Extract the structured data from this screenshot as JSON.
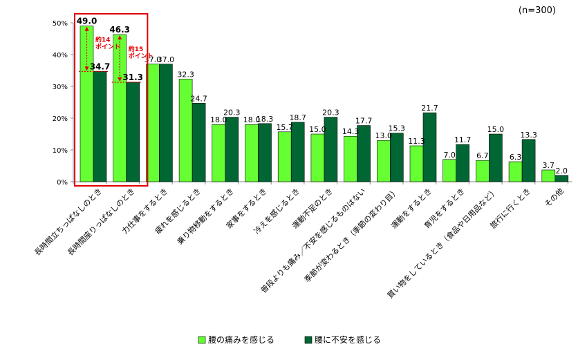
{
  "chart_data": {
    "type": "bar",
    "sample_note": "(n=300)",
    "categories": [
      "長時間立ちっぱなしのとき",
      "長時間座りっぱなしのとき",
      "力仕事をするとき",
      "疲れを感じるとき",
      "乗り物移動をするとき",
      "家事をするとき",
      "冷えを感じるとき",
      "運動不足のとき",
      "普段よりも痛み／不安を感じるものはない",
      "季節が変わるとき（季節の変わり目）",
      "運動をするとき",
      "育児をするとき",
      "買い物をしているとき（食品や日用品など）",
      "旅行に行くとき",
      "その他"
    ],
    "series": [
      {
        "name": "腰の痛みを感じる",
        "color": "#66ff33",
        "values": [
          49.0,
          46.3,
          37.0,
          32.3,
          18.0,
          18.0,
          15.7,
          15.0,
          14.3,
          13.0,
          11.3,
          7.0,
          6.7,
          6.3,
          3.7
        ]
      },
      {
        "name": "腰に不安を感じる",
        "color": "#006633",
        "values": [
          34.7,
          31.3,
          37.0,
          24.7,
          20.3,
          18.3,
          18.7,
          20.3,
          17.7,
          15.3,
          21.7,
          11.7,
          15.0,
          13.3,
          2.0
        ]
      }
    ],
    "yticks": [
      "0%",
      "10%",
      "20%",
      "30%",
      "40%",
      "50%"
    ],
    "ylim": [
      0,
      50
    ],
    "grid": false,
    "legend_position": "bottom",
    "highlight_categories": [
      0,
      1
    ],
    "annotations": [
      {
        "category": 0,
        "label_line1": "約14",
        "label_line2": "ポイント"
      },
      {
        "category": 1,
        "label_line1": "約15",
        "label_line2": "ポイント"
      }
    ],
    "accent_color": "#e00000"
  }
}
